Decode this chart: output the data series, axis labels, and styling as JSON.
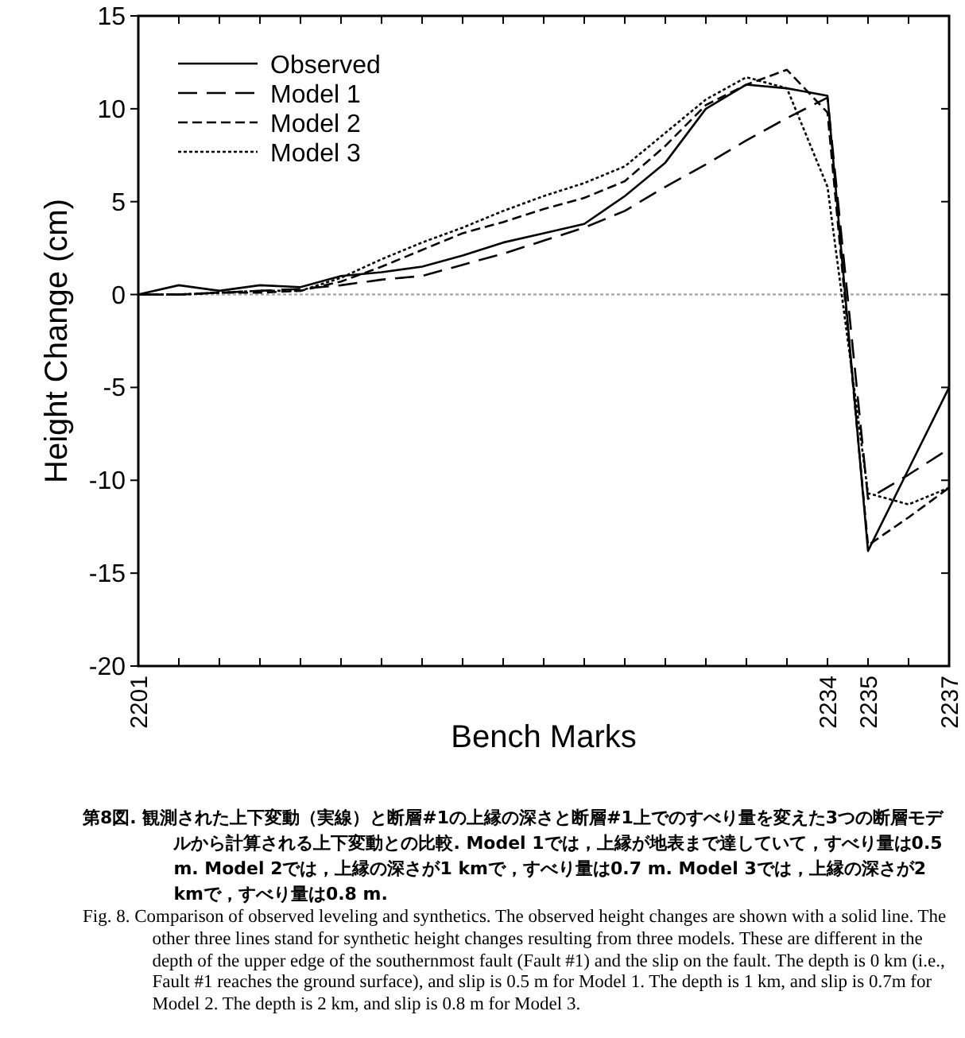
{
  "chart_data": {
    "type": "line",
    "xlabel": "Bench Marks",
    "ylabel": "Height Change (cm)",
    "categories": [
      "2201",
      null,
      null,
      null,
      null,
      null,
      null,
      null,
      null,
      null,
      null,
      null,
      null,
      null,
      null,
      null,
      null,
      "2234",
      "2235",
      null,
      "2237"
    ],
    "ylim": [
      -20,
      15
    ],
    "yticks": [
      -20,
      -15,
      -10,
      -5,
      0,
      5,
      10,
      15
    ],
    "legend": "top left",
    "ref_lines": [
      {
        "axis": "y",
        "value": 0,
        "color": "#aaaaaa",
        "line_style": "dotted"
      }
    ],
    "series": [
      {
        "name": "Observed",
        "color": "#000000",
        "line_style": "solid",
        "values": [
          0,
          0.5,
          0.2,
          0.5,
          0.4,
          1.0,
          1.2,
          1.5,
          2.1,
          2.8,
          3.3,
          3.8,
          5.3,
          7.1,
          10.0,
          11.3,
          11.1,
          10.7,
          -13.8,
          -9.4,
          -5.0
        ]
      },
      {
        "name": "Model 1",
        "color": "#000000",
        "line_style": "longdash",
        "values": [
          0,
          0,
          0.1,
          0.2,
          0.3,
          0.5,
          0.8,
          1.0,
          1.6,
          2.2,
          2.9,
          3.6,
          4.5,
          5.8,
          7.0,
          8.3,
          9.5,
          10.6,
          -11.0,
          -9.7,
          -8.3
        ]
      },
      {
        "name": "Model 2",
        "color": "#000000",
        "line_style": "dashed",
        "values": [
          0,
          0,
          0.1,
          0.1,
          0.2,
          0.7,
          1.5,
          2.4,
          3.3,
          3.9,
          4.6,
          5.2,
          6.1,
          8.0,
          10.2,
          11.3,
          12.1,
          9.8,
          -13.5,
          -12.0,
          -10.4
        ]
      },
      {
        "name": "Model 3",
        "color": "#000000",
        "line_style": "dotted",
        "values": [
          0,
          0,
          0.1,
          0.2,
          0.2,
          0.9,
          1.9,
          2.8,
          3.6,
          4.5,
          5.3,
          6.0,
          6.9,
          8.7,
          10.5,
          11.7,
          11.1,
          5.8,
          -10.7,
          -11.3,
          -10.4
        ]
      }
    ],
    "annotations": [
      "第8図. 観測された上下変動（実線）と断層#1の上縁の深さと断層#1上でのすべり量を変えた3つの断層モデルから計算される上下変動との比較. Model 1では，上縁が地表まで達していて，すべり量は0.5 m. Model 2では，上縁の深さが1 kmで，すべり量は0.7 m. Model 3では，上縁の深さが2 kmで，すべり量は0.8 m.",
      "Fig. 8. Comparison of observed leveling and synthetics. The observed height changes are shown with a solid line. The other three lines stand for synthetic height changes resulting from three models. These are different in the depth of the upper edge of the southernmost fault (Fault #1) and the slip on the fault. The depth is 0 km (i.e., Fault #1 reaches the ground surface), and slip is 0.5 m for Model 1. The depth is 1 km, and slip is 0.7m for Model 2. The depth is 2 km, and slip is 0.8 m for Model 3."
    ]
  }
}
